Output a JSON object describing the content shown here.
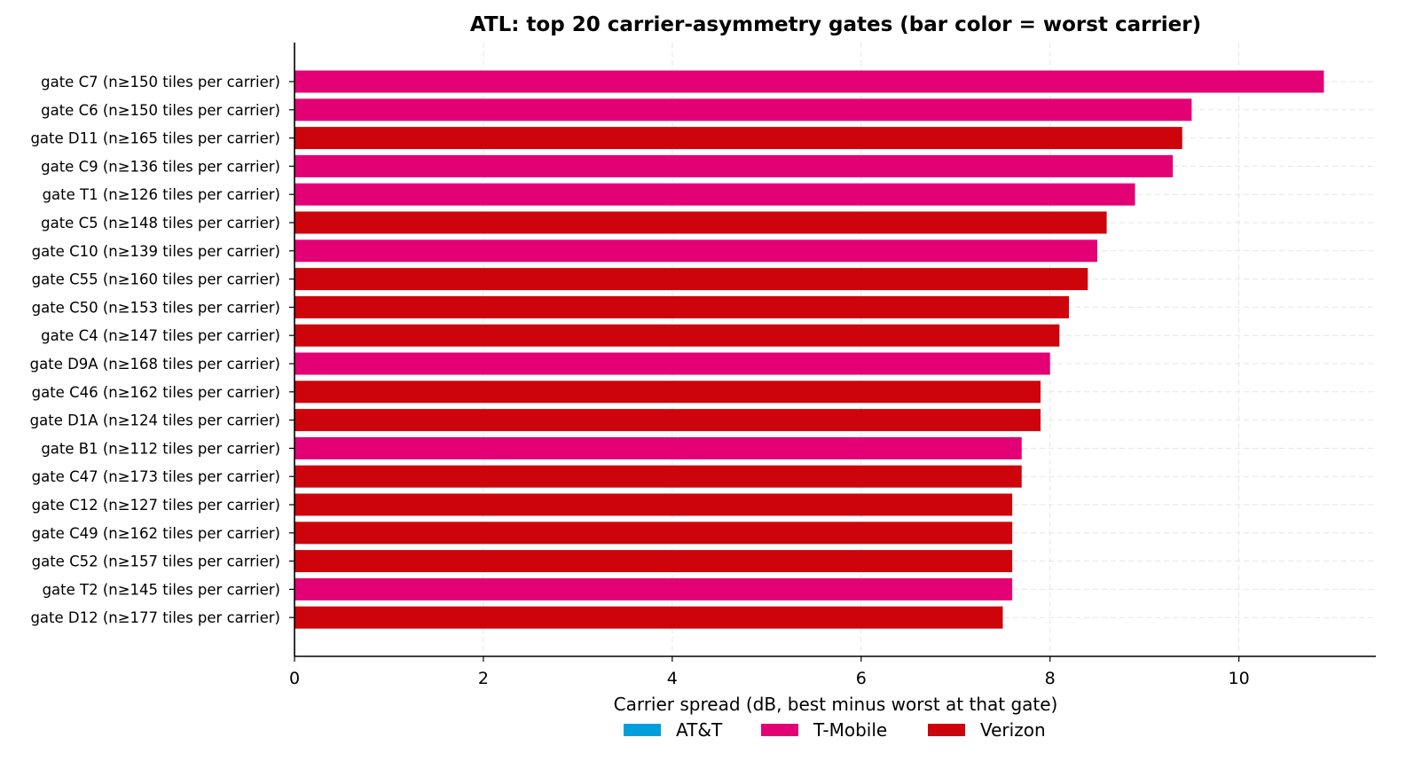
{
  "chart_data": {
    "type": "bar",
    "orientation": "horizontal",
    "title": "ATL: top 20 carrier-asymmetry gates (bar color = worst carrier)",
    "xlabel": "Carrier spread (dB, best minus worst at that gate)",
    "ylabel": "",
    "xlim": [
      0,
      11.45
    ],
    "xticks": [
      0,
      2,
      4,
      6,
      8,
      10
    ],
    "grid": true,
    "legend_position": "bottom-center",
    "legend": [
      {
        "name": "AT&T",
        "color": "#009fdb"
      },
      {
        "name": "T-Mobile",
        "color": "#e20074"
      },
      {
        "name": "Verizon",
        "color": "#cd040b"
      }
    ],
    "bars": [
      {
        "label": "gate C7 (n≥150 tiles per carrier)",
        "value": 10.9,
        "carrier": "T-Mobile"
      },
      {
        "label": "gate C6 (n≥150 tiles per carrier)",
        "value": 9.5,
        "carrier": "T-Mobile"
      },
      {
        "label": "gate D11 (n≥165 tiles per carrier)",
        "value": 9.4,
        "carrier": "Verizon"
      },
      {
        "label": "gate C9 (n≥136 tiles per carrier)",
        "value": 9.3,
        "carrier": "T-Mobile"
      },
      {
        "label": "gate T1 (n≥126 tiles per carrier)",
        "value": 8.9,
        "carrier": "T-Mobile"
      },
      {
        "label": "gate C5 (n≥148 tiles per carrier)",
        "value": 8.6,
        "carrier": "Verizon"
      },
      {
        "label": "gate C10 (n≥139 tiles per carrier)",
        "value": 8.5,
        "carrier": "T-Mobile"
      },
      {
        "label": "gate C55 (n≥160 tiles per carrier)",
        "value": 8.4,
        "carrier": "Verizon"
      },
      {
        "label": "gate C50 (n≥153 tiles per carrier)",
        "value": 8.2,
        "carrier": "Verizon"
      },
      {
        "label": "gate C4 (n≥147 tiles per carrier)",
        "value": 8.1,
        "carrier": "Verizon"
      },
      {
        "label": "gate D9A (n≥168 tiles per carrier)",
        "value": 8.0,
        "carrier": "T-Mobile"
      },
      {
        "label": "gate C46 (n≥162 tiles per carrier)",
        "value": 7.9,
        "carrier": "Verizon"
      },
      {
        "label": "gate D1A (n≥124 tiles per carrier)",
        "value": 7.9,
        "carrier": "Verizon"
      },
      {
        "label": "gate B1 (n≥112 tiles per carrier)",
        "value": 7.7,
        "carrier": "T-Mobile"
      },
      {
        "label": "gate C47 (n≥173 tiles per carrier)",
        "value": 7.7,
        "carrier": "Verizon"
      },
      {
        "label": "gate C12 (n≥127 tiles per carrier)",
        "value": 7.6,
        "carrier": "Verizon"
      },
      {
        "label": "gate C49 (n≥162 tiles per carrier)",
        "value": 7.6,
        "carrier": "Verizon"
      },
      {
        "label": "gate C52 (n≥157 tiles per carrier)",
        "value": 7.6,
        "carrier": "Verizon"
      },
      {
        "label": "gate T2 (n≥145 tiles per carrier)",
        "value": 7.6,
        "carrier": "T-Mobile"
      },
      {
        "label": "gate D12 (n≥177 tiles per carrier)",
        "value": 7.5,
        "carrier": "Verizon"
      }
    ]
  }
}
